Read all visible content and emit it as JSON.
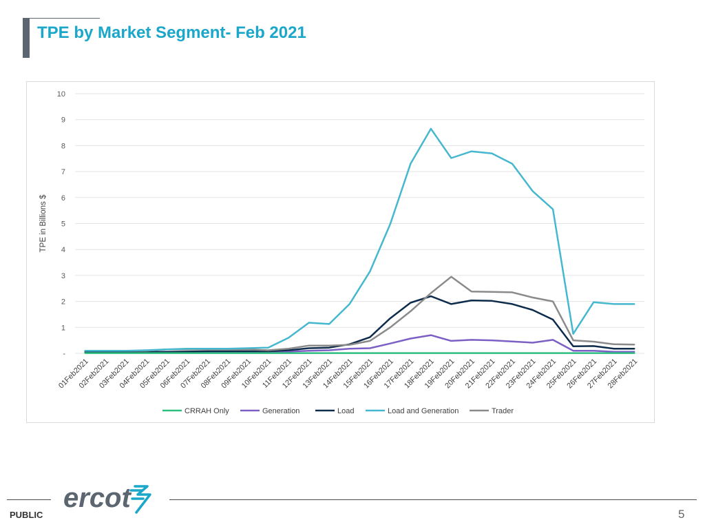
{
  "slide": {
    "title": "TPE by Market Segment- Feb 2021",
    "footer_label": "PUBLIC",
    "page_number": "5",
    "logo_text": "ercot"
  },
  "colors": {
    "title": "#1aa7c9",
    "crrah": "#2dbf7f",
    "generation": "#7b5fc5",
    "load": "#0d2b4a",
    "load_and_generation": "#45b7ce",
    "trader": "#8a8a8a",
    "logo": "#5b6670",
    "logo_mark": "#1aa7c9"
  },
  "chart_data": {
    "type": "line",
    "title": "",
    "xlabel": "",
    "ylabel": "TPE in Billions $",
    "ylim": [
      0,
      10
    ],
    "yticks": [
      "-",
      "1",
      "2",
      "3",
      "4",
      "5",
      "6",
      "7",
      "8",
      "9",
      "10"
    ],
    "grid": true,
    "legend_position": "bottom",
    "categories": [
      "01Feb2021",
      "02Feb2021",
      "03Feb2021",
      "04Feb2021",
      "05Feb2021",
      "06Feb2021",
      "07Feb2021",
      "08Feb2021",
      "09Feb2021",
      "10Feb2021",
      "11Feb2021",
      "12Feb2021",
      "13Feb2021",
      "14Feb2021",
      "15Feb2021",
      "16Feb2021",
      "17Feb2021",
      "18Feb2021",
      "19Feb2021",
      "20Feb2021",
      "21Feb2021",
      "22Feb2021",
      "23Feb2021",
      "24Feb2021",
      "25Feb2021",
      "26Feb2021",
      "27Feb2021",
      "28Feb2021"
    ],
    "series": [
      {
        "name": "CRRAH Only",
        "color_key": "crrah",
        "values": [
          0.01,
          0.01,
          0.01,
          0.01,
          0.01,
          0.01,
          0.01,
          0.01,
          0.01,
          0.01,
          0.01,
          0.01,
          0.01,
          0.01,
          0.01,
          0.01,
          0.01,
          0.01,
          0.01,
          0.01,
          0.01,
          0.01,
          0.01,
          0.01,
          0.01,
          0.01,
          0.01,
          0.01
        ]
      },
      {
        "name": "Generation",
        "color_key": "generation",
        "values": [
          0.05,
          0.05,
          0.05,
          0.05,
          0.06,
          0.06,
          0.06,
          0.06,
          0.06,
          0.06,
          0.07,
          0.1,
          0.12,
          0.18,
          0.2,
          0.38,
          0.57,
          0.7,
          0.48,
          0.52,
          0.5,
          0.46,
          0.41,
          0.52,
          0.1,
          0.1,
          0.06,
          0.06
        ]
      },
      {
        "name": "Load",
        "color_key": "load",
        "values": [
          0.05,
          0.05,
          0.05,
          0.05,
          0.06,
          0.07,
          0.08,
          0.08,
          0.08,
          0.08,
          0.12,
          0.2,
          0.22,
          0.35,
          0.62,
          1.35,
          1.95,
          2.2,
          1.9,
          2.04,
          2.02,
          1.9,
          1.67,
          1.3,
          0.27,
          0.28,
          0.18,
          0.18
        ]
      },
      {
        "name": "Load and Generation",
        "color_key": "load_and_generation",
        "values": [
          0.1,
          0.1,
          0.1,
          0.12,
          0.15,
          0.18,
          0.18,
          0.18,
          0.2,
          0.22,
          0.6,
          1.18,
          1.13,
          1.9,
          3.15,
          4.98,
          7.3,
          8.65,
          7.52,
          7.78,
          7.7,
          7.3,
          6.25,
          5.55,
          0.75,
          1.97,
          1.9,
          1.9
        ]
      },
      {
        "name": "Trader",
        "color_key": "trader",
        "values": [
          0.1,
          0.1,
          0.1,
          0.1,
          0.15,
          0.15,
          0.15,
          0.15,
          0.15,
          0.12,
          0.18,
          0.3,
          0.3,
          0.33,
          0.48,
          1.0,
          1.62,
          2.32,
          2.95,
          2.38,
          2.37,
          2.35,
          2.15,
          2.0,
          0.5,
          0.45,
          0.35,
          0.34
        ]
      }
    ]
  }
}
